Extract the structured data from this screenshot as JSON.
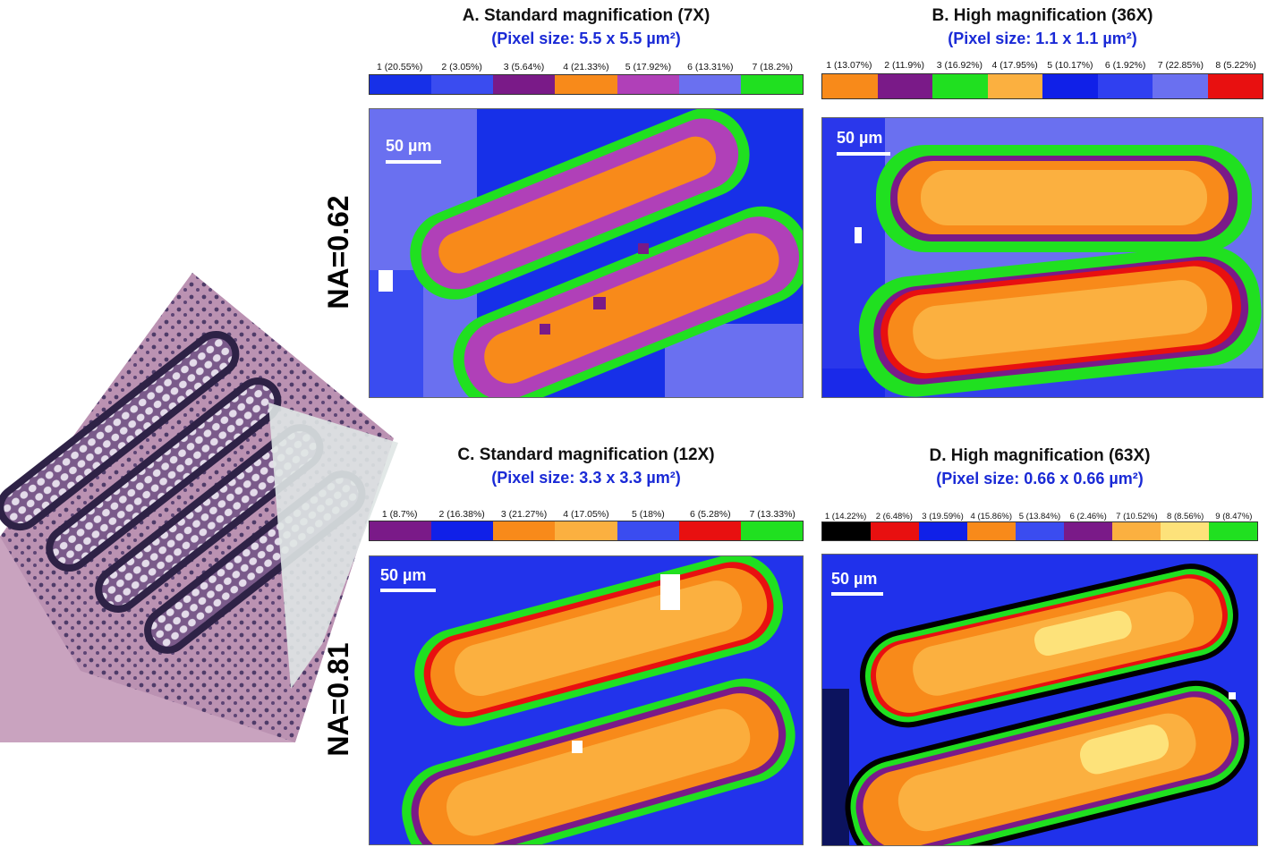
{
  "rows": [
    {
      "label": "NA=0.62"
    },
    {
      "label": "NA=0.81"
    }
  ],
  "panels": [
    {
      "id": "A",
      "title": "A. Standard magnification (7X)",
      "subtitle": "(Pixel size: 5.5 x 5.5 µm²)",
      "scalebar": "50 µm",
      "clusters": [
        {
          "label": "1 (20.55%)",
          "color": "#1730e8"
        },
        {
          "label": "2 (3.05%)",
          "color": "#3a4cf0"
        },
        {
          "label": "3 (5.64%)",
          "color": "#7a1a88"
        },
        {
          "label": "4 (21.33%)",
          "color": "#f88a1a"
        },
        {
          "label": "5 (17.92%)",
          "color": "#b040b8"
        },
        {
          "label": "6 (13.31%)",
          "color": "#6a70f0"
        },
        {
          "label": "7 (18.2%)",
          "color": "#20e020"
        }
      ]
    },
    {
      "id": "B",
      "title": "B. High magnification (36X)",
      "subtitle": "(Pixel size: 1.1 x 1.1 µm²)",
      "scalebar": "50 µm",
      "clusters": [
        {
          "label": "1 (13.07%)",
          "color": "#f88a1a"
        },
        {
          "label": "2 (11.9%)",
          "color": "#7a1a88"
        },
        {
          "label": "3 (16.92%)",
          "color": "#20e020"
        },
        {
          "label": "4 (17.95%)",
          "color": "#fbb040"
        },
        {
          "label": "5 (10.17%)",
          "color": "#1020e8"
        },
        {
          "label": "6 (1.92%)",
          "color": "#3040f0"
        },
        {
          "label": "7 (22.85%)",
          "color": "#6a70f0"
        },
        {
          "label": "8 (5.22%)",
          "color": "#e81010"
        }
      ]
    },
    {
      "id": "C",
      "title": "C. Standard magnification (12X)",
      "subtitle": "(Pixel size: 3.3 x 3.3 µm²)",
      "scalebar": "50 µm",
      "clusters": [
        {
          "label": "1 (8.7%)",
          "color": "#7a1a88"
        },
        {
          "label": "2 (16.38%)",
          "color": "#1020e8"
        },
        {
          "label": "3 (21.27%)",
          "color": "#f88a1a"
        },
        {
          "label": "4 (17.05%)",
          "color": "#fbb040"
        },
        {
          "label": "5 (18%)",
          "color": "#3a4cf0"
        },
        {
          "label": "6 (5.28%)",
          "color": "#e81010"
        },
        {
          "label": "7 (13.33%)",
          "color": "#20e020"
        }
      ]
    },
    {
      "id": "D",
      "title": "D. High magnification (63X)",
      "subtitle": "(Pixel size: 0.66 x 0.66 µm²)",
      "scalebar": "50 µm",
      "clusters": [
        {
          "label": "1 (14.22%)",
          "color": "#000000"
        },
        {
          "label": "2 (6.48%)",
          "color": "#e81010"
        },
        {
          "label": "3 (19.59%)",
          "color": "#1020e8"
        },
        {
          "label": "4 (15.86%)",
          "color": "#f88a1a"
        },
        {
          "label": "5 (13.84%)",
          "color": "#3a4cf0"
        },
        {
          "label": "6 (2.46%)",
          "color": "#7a1a88"
        },
        {
          "label": "7 (10.52%)",
          "color": "#fbb040"
        },
        {
          "label": "8 (8.56%)",
          "color": "#fde27a"
        },
        {
          "label": "9 (8.47%)",
          "color": "#20e020"
        }
      ]
    }
  ]
}
